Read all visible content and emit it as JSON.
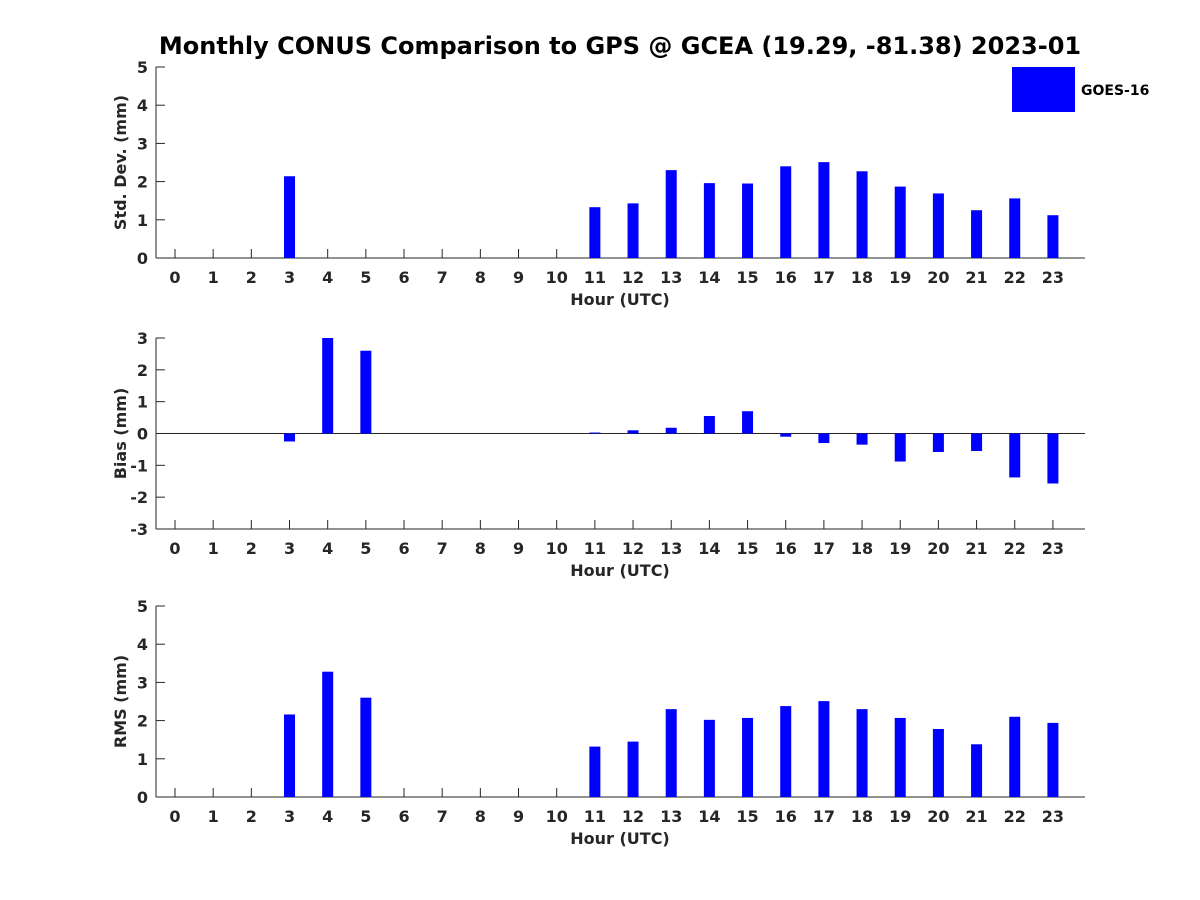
{
  "title": "Monthly CONUS Comparison to GPS @ GCEA (19.29, -81.38) 2023-01",
  "legend": {
    "label": "GOES-16",
    "color": "#0000ff",
    "placement": "top-right"
  },
  "chart_data": [
    {
      "type": "bar",
      "xlabel": "Hour (UTC)",
      "ylabel": "Std. Dev. (mm)",
      "ylim": [
        0,
        5
      ],
      "yticks": [
        "0",
        "1",
        "2",
        "3",
        "4",
        "5"
      ],
      "categories": [
        "0",
        "1",
        "2",
        "3",
        "4",
        "5",
        "6",
        "7",
        "8",
        "9",
        "10",
        "11",
        "12",
        "13",
        "14",
        "15",
        "16",
        "17",
        "18",
        "19",
        "20",
        "21",
        "22",
        "23"
      ],
      "series": [
        {
          "name": "GOES-16",
          "values": [
            null,
            null,
            null,
            2.14,
            null,
            null,
            null,
            null,
            null,
            null,
            null,
            1.33,
            1.43,
            2.3,
            1.96,
            1.95,
            2.4,
            2.51,
            2.27,
            1.87,
            1.69,
            1.25,
            1.56,
            1.12
          ]
        }
      ]
    },
    {
      "type": "bar",
      "xlabel": "Hour (UTC)",
      "ylabel": "Bias (mm)",
      "ylim": [
        -3,
        3
      ],
      "yticks": [
        "-3",
        "-2",
        "-1",
        "0",
        "1",
        "2",
        "3"
      ],
      "categories": [
        "0",
        "1",
        "2",
        "3",
        "4",
        "5",
        "6",
        "7",
        "8",
        "9",
        "10",
        "11",
        "12",
        "13",
        "14",
        "15",
        "16",
        "17",
        "18",
        "19",
        "20",
        "21",
        "22",
        "23"
      ],
      "series": [
        {
          "name": "GOES-16",
          "values": [
            null,
            null,
            null,
            -0.25,
            3.0,
            2.6,
            null,
            null,
            null,
            null,
            null,
            0.03,
            0.1,
            0.18,
            0.55,
            0.7,
            -0.1,
            -0.3,
            -0.35,
            -0.88,
            -0.58,
            -0.55,
            -1.38,
            -1.57
          ]
        }
      ]
    },
    {
      "type": "bar",
      "xlabel": "Hour (UTC)",
      "ylabel": "RMS (mm)",
      "ylim": [
        0,
        5
      ],
      "yticks": [
        "0",
        "1",
        "2",
        "3",
        "4",
        "5"
      ],
      "categories": [
        "0",
        "1",
        "2",
        "3",
        "4",
        "5",
        "6",
        "7",
        "8",
        "9",
        "10",
        "11",
        "12",
        "13",
        "14",
        "15",
        "16",
        "17",
        "18",
        "19",
        "20",
        "21",
        "22",
        "23"
      ],
      "series": [
        {
          "name": "GOES-16",
          "values": [
            null,
            null,
            null,
            2.16,
            3.28,
            2.6,
            null,
            null,
            null,
            null,
            null,
            1.32,
            1.45,
            2.3,
            2.02,
            2.07,
            2.38,
            2.51,
            2.3,
            2.07,
            1.78,
            1.38,
            2.1,
            1.94
          ]
        }
      ]
    }
  ]
}
